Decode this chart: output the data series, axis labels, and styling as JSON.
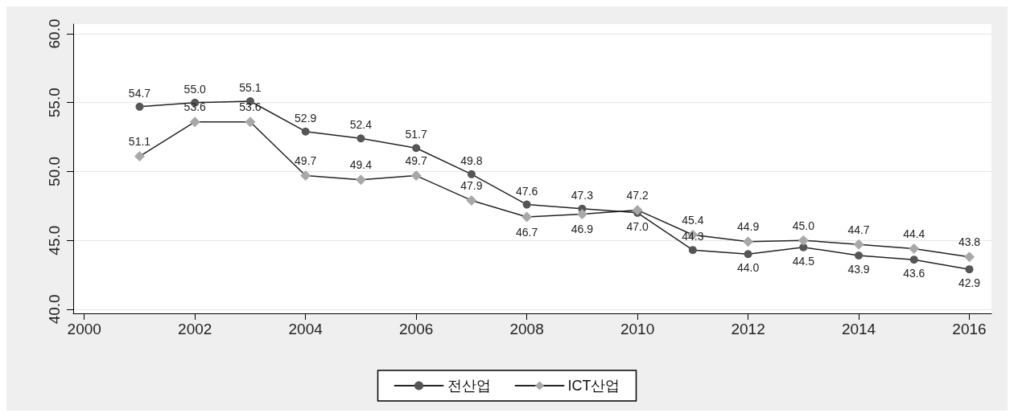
{
  "chart_data": {
    "type": "line",
    "x": [
      2001,
      2002,
      2003,
      2004,
      2005,
      2006,
      2007,
      2008,
      2009,
      2010,
      2011,
      2012,
      2013,
      2014,
      2015,
      2016
    ],
    "series": [
      {
        "name": "전산업",
        "color": "#555555",
        "marker": "circle",
        "values": [
          54.7,
          55.0,
          55.1,
          52.9,
          52.4,
          51.7,
          49.8,
          47.6,
          47.3,
          47.0,
          44.3,
          44.0,
          44.5,
          43.9,
          43.6,
          42.9
        ],
        "value_labels": [
          "54.7",
          "55.0",
          "55.1",
          "52.9",
          "52.4",
          "51.7",
          "49.8",
          "47.6",
          "47.3",
          "47.0",
          "44.3",
          "44.0",
          "44.5",
          "43.9",
          "43.6",
          "42.9"
        ]
      },
      {
        "name": "ICT산업",
        "color": "#a8a8a8",
        "marker": "diamond",
        "values": [
          51.1,
          53.6,
          53.6,
          49.7,
          49.4,
          49.7,
          47.9,
          46.7,
          46.9,
          47.2,
          45.4,
          44.9,
          45.0,
          44.7,
          44.4,
          43.8
        ],
        "value_labels": [
          "51.1",
          "53.6",
          "53.6",
          "49.7",
          "49.4",
          "49.7",
          "47.9",
          "46.7",
          "46.9",
          "47.2",
          "45.4",
          "44.9",
          "45.0",
          "44.7",
          "44.4",
          "43.8"
        ]
      }
    ],
    "xlim": [
      1999.8,
      2016.4
    ],
    "xticks": [
      2000,
      2002,
      2004,
      2006,
      2008,
      2010,
      2012,
      2014,
      2016
    ],
    "ylim": [
      39.7,
      60.7
    ],
    "yticks": [
      {
        "value": 40,
        "label": "40.0"
      },
      {
        "value": 45,
        "label": "45.0"
      },
      {
        "value": 50,
        "label": "50.0"
      },
      {
        "value": 55,
        "label": "55.0"
      },
      {
        "value": 60,
        "label": "60.0"
      }
    ],
    "grid": "y",
    "legend": "bottom",
    "line_style": "solid"
  }
}
